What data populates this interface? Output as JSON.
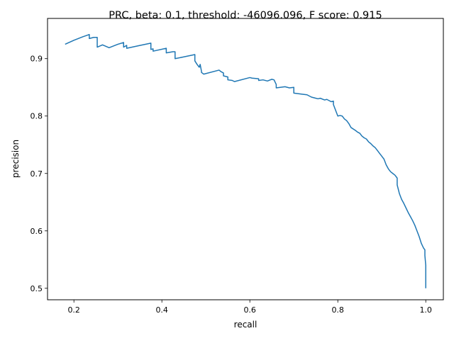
{
  "chart_data": {
    "type": "line",
    "title": "PRC, beta: 0.1, threshold: -46096.096, F score: 0.915",
    "xlabel": "recall",
    "ylabel": "precision",
    "xlim": [
      0.14,
      1.04
    ],
    "ylim": [
      0.48,
      0.97
    ],
    "x_ticks": [
      0.2,
      0.4,
      0.6,
      0.8,
      1.0
    ],
    "x_tick_labels": [
      "0.2",
      "0.4",
      "0.6",
      "0.8",
      "1.0"
    ],
    "y_ticks": [
      0.5,
      0.6,
      0.7,
      0.8,
      0.9
    ],
    "y_tick_labels": [
      "0.5",
      "0.6",
      "0.7",
      "0.8",
      "0.9"
    ],
    "grid": false,
    "legend": "none",
    "line_color": "#1f77b4",
    "series": [
      {
        "x": [
          0.18,
          0.2,
          0.22,
          0.235,
          0.235,
          0.245,
          0.253,
          0.253,
          0.265,
          0.28,
          0.3,
          0.313,
          0.313,
          0.32,
          0.32,
          0.35,
          0.375,
          0.375,
          0.38,
          0.38,
          0.41,
          0.41,
          0.425,
          0.43,
          0.43,
          0.45,
          0.475,
          0.475,
          0.48,
          0.485,
          0.487,
          0.49,
          0.49,
          0.495,
          0.53,
          0.535,
          0.54,
          0.54,
          0.55,
          0.55,
          0.56,
          0.565,
          0.6,
          0.605,
          0.62,
          0.62,
          0.63,
          0.64,
          0.65,
          0.655,
          0.66,
          0.66,
          0.68,
          0.69,
          0.7,
          0.7,
          0.72,
          0.73,
          0.74,
          0.75,
          0.755,
          0.76,
          0.77,
          0.775,
          0.78,
          0.785,
          0.79,
          0.79,
          0.8,
          0.805,
          0.81,
          0.815,
          0.82,
          0.825,
          0.83,
          0.84,
          0.845,
          0.85,
          0.855,
          0.86,
          0.865,
          0.87,
          0.875,
          0.88,
          0.885,
          0.89,
          0.895,
          0.9,
          0.905,
          0.91,
          0.915,
          0.92,
          0.925,
          0.93,
          0.935,
          0.935,
          0.94,
          0.945,
          0.95,
          0.955,
          0.96,
          0.965,
          0.97,
          0.975,
          0.98,
          0.985,
          0.99,
          0.995,
          0.998,
          0.998,
          1.0,
          1.0
        ],
        "y": [
          0.925,
          0.932,
          0.938,
          0.942,
          0.935,
          0.937,
          0.937,
          0.92,
          0.924,
          0.919,
          0.925,
          0.928,
          0.92,
          0.923,
          0.918,
          0.923,
          0.927,
          0.916,
          0.917,
          0.913,
          0.918,
          0.91,
          0.912,
          0.912,
          0.9,
          0.903,
          0.907,
          0.896,
          0.89,
          0.885,
          0.89,
          0.878,
          0.876,
          0.873,
          0.88,
          0.877,
          0.875,
          0.87,
          0.868,
          0.863,
          0.862,
          0.86,
          0.867,
          0.866,
          0.865,
          0.862,
          0.863,
          0.861,
          0.864,
          0.863,
          0.855,
          0.849,
          0.851,
          0.849,
          0.85,
          0.84,
          0.838,
          0.837,
          0.833,
          0.831,
          0.83,
          0.831,
          0.828,
          0.829,
          0.827,
          0.825,
          0.826,
          0.82,
          0.8,
          0.801,
          0.8,
          0.795,
          0.792,
          0.787,
          0.78,
          0.775,
          0.772,
          0.77,
          0.765,
          0.762,
          0.76,
          0.755,
          0.752,
          0.748,
          0.745,
          0.74,
          0.735,
          0.73,
          0.725,
          0.715,
          0.708,
          0.703,
          0.7,
          0.697,
          0.692,
          0.68,
          0.665,
          0.655,
          0.648,
          0.64,
          0.632,
          0.625,
          0.618,
          0.61,
          0.6,
          0.59,
          0.578,
          0.57,
          0.567,
          0.557,
          0.54,
          0.5
        ]
      }
    ]
  }
}
